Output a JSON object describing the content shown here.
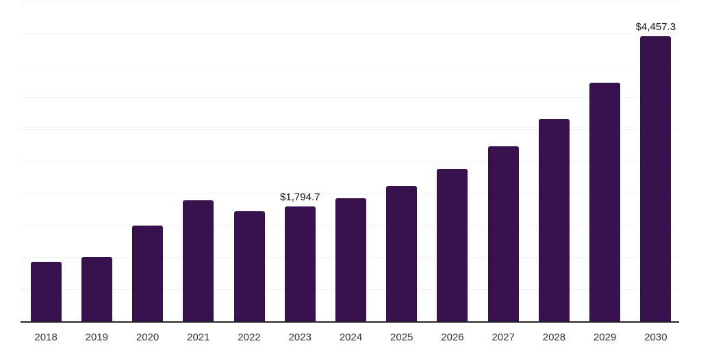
{
  "chart_data": {
    "type": "bar",
    "title": "",
    "xlabel": "",
    "ylabel": "",
    "categories": [
      "2018",
      "2019",
      "2020",
      "2021",
      "2022",
      "2023",
      "2024",
      "2025",
      "2026",
      "2027",
      "2028",
      "2029",
      "2030"
    ],
    "values": [
      925,
      1000,
      1495,
      1895,
      1715,
      1794.7,
      1920,
      2120,
      2385,
      2730,
      3160,
      3725,
      4457.3
    ],
    "data_labels": {
      "2023": "$1,794.7",
      "2030": "$4,457.3"
    },
    "ylim": [
      0,
      5000
    ],
    "gridline_step": 500,
    "grid": "horizontal only, no y-axis tick labels",
    "legend": "none",
    "bar_color": "#36114D",
    "gridline_color": "#f2f2f2",
    "axis_line_color": "#262626",
    "tick_label_color": "#333333",
    "data_label_color": "#111111"
  }
}
